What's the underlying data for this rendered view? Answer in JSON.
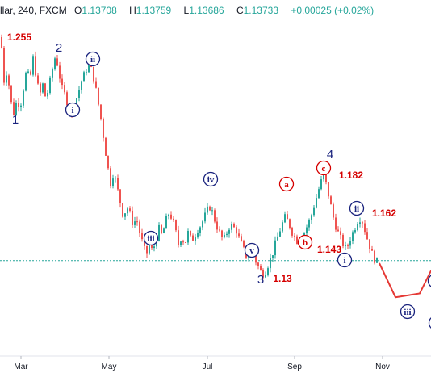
{
  "header": {
    "symbol": "llar, 240, FXCM",
    "o_label": "O",
    "o_value": "1.13708",
    "h_label": "H",
    "h_value": "1.13759",
    "l_label": "L",
    "l_value": "1.13686",
    "c_label": "C",
    "c_value": "1.13733",
    "change": "+0.00025 (+0.02%)"
  },
  "colors": {
    "up": "#26a69a",
    "down": "#ef5350",
    "wave_blue": "#1a237e",
    "wave_red": "#d50000",
    "price_line": "#26a69a",
    "projection": "#e53935"
  },
  "chart_data": {
    "type": "candlestick",
    "x_ticks": [
      "Mar",
      "May",
      "Jul",
      "Sep",
      "Nov"
    ],
    "current_price": 1.13733,
    "price_levels": [
      "1.255",
      "1.13",
      "1.182",
      "1.143",
      "1.162"
    ],
    "wave_labels_blue": [
      "1",
      "2",
      "3",
      "4"
    ],
    "wave_labels_circled_blue": [
      "i",
      "ii",
      "iii",
      "iv",
      "v",
      "i",
      "ii",
      "iii"
    ],
    "wave_labels_circled_red": [
      "a",
      "b",
      "c"
    ],
    "path_points": [
      [
        0,
        1.255
      ],
      [
        4,
        1.232
      ],
      [
        8,
        1.238
      ],
      [
        12,
        1.222
      ],
      [
        16,
        1.215
      ],
      [
        20,
        1.222
      ],
      [
        24,
        1.218
      ],
      [
        28,
        1.228
      ],
      [
        32,
        1.238
      ],
      [
        36,
        1.232
      ],
      [
        40,
        1.244
      ],
      [
        44,
        1.234
      ],
      [
        48,
        1.224
      ],
      [
        52,
        1.23
      ],
      [
        56,
        1.222
      ],
      [
        60,
        1.23
      ],
      [
        64,
        1.238
      ],
      [
        68,
        1.246
      ],
      [
        72,
        1.236
      ],
      [
        76,
        1.228
      ],
      [
        80,
        1.224
      ],
      [
        84,
        1.218
      ],
      [
        88,
        1.214
      ],
      [
        92,
        1.22
      ],
      [
        96,
        1.226
      ],
      [
        100,
        1.232
      ],
      [
        104,
        1.236
      ],
      [
        108,
        1.24
      ],
      [
        112,
        1.238
      ],
      [
        116,
        1.232
      ],
      [
        120,
        1.222
      ],
      [
        124,
        1.212
      ],
      [
        128,
        1.2
      ],
      [
        132,
        1.188
      ],
      [
        136,
        1.178
      ],
      [
        140,
        1.184
      ],
      [
        144,
        1.176
      ],
      [
        148,
        1.168
      ],
      [
        152,
        1.16
      ],
      [
        156,
        1.166
      ],
      [
        160,
        1.162
      ],
      [
        164,
        1.156
      ],
      [
        168,
        1.16
      ],
      [
        172,
        1.152
      ],
      [
        176,
        1.146
      ],
      [
        180,
        1.14
      ],
      [
        184,
        1.146
      ],
      [
        188,
        1.142
      ],
      [
        192,
        1.148
      ],
      [
        196,
        1.154
      ],
      [
        200,
        1.15
      ],
      [
        204,
        1.158
      ],
      [
        208,
        1.162
      ],
      [
        212,
        1.16
      ],
      [
        216,
        1.154
      ],
      [
        220,
        1.146
      ],
      [
        224,
        1.15
      ],
      [
        228,
        1.146
      ],
      [
        232,
        1.152
      ],
      [
        236,
        1.148
      ],
      [
        240,
        1.15
      ],
      [
        244,
        1.154
      ],
      [
        248,
        1.156
      ],
      [
        252,
        1.16
      ],
      [
        256,
        1.164
      ],
      [
        260,
        1.166
      ],
      [
        264,
        1.16
      ],
      [
        268,
        1.155
      ],
      [
        272,
        1.151
      ],
      [
        276,
        1.148
      ],
      [
        280,
        1.152
      ],
      [
        284,
        1.156
      ],
      [
        288,
        1.155
      ],
      [
        292,
        1.153
      ],
      [
        296,
        1.148
      ],
      [
        300,
        1.144
      ],
      [
        304,
        1.14
      ],
      [
        308,
        1.144
      ],
      [
        312,
        1.142
      ],
      [
        316,
        1.137
      ],
      [
        320,
        1.133
      ],
      [
        324,
        1.13
      ],
      [
        328,
        1.132
      ],
      [
        332,
        1.136
      ],
      [
        336,
        1.14
      ],
      [
        340,
        1.146
      ],
      [
        344,
        1.151
      ],
      [
        348,
        1.156
      ],
      [
        352,
        1.16
      ],
      [
        356,
        1.158
      ],
      [
        360,
        1.153
      ],
      [
        364,
        1.15
      ],
      [
        368,
        1.147
      ],
      [
        372,
        1.15
      ],
      [
        376,
        1.152
      ],
      [
        380,
        1.156
      ],
      [
        384,
        1.16
      ],
      [
        388,
        1.166
      ],
      [
        392,
        1.172
      ],
      [
        396,
        1.178
      ],
      [
        400,
        1.182
      ],
      [
        404,
        1.176
      ],
      [
        408,
        1.168
      ],
      [
        412,
        1.16
      ],
      [
        416,
        1.154
      ],
      [
        420,
        1.15
      ],
      [
        424,
        1.146
      ],
      [
        428,
        1.143
      ],
      [
        432,
        1.148
      ],
      [
        436,
        1.152
      ],
      [
        440,
        1.156
      ],
      [
        444,
        1.16
      ],
      [
        448,
        1.158
      ],
      [
        452,
        1.152
      ],
      [
        456,
        1.146
      ],
      [
        460,
        1.141
      ],
      [
        464,
        1.137
      ]
    ],
    "projection_points": [
      [
        470,
        1.136
      ],
      [
        490,
        1.118
      ],
      [
        520,
        1.12
      ],
      [
        534,
        1.132
      ]
    ]
  }
}
